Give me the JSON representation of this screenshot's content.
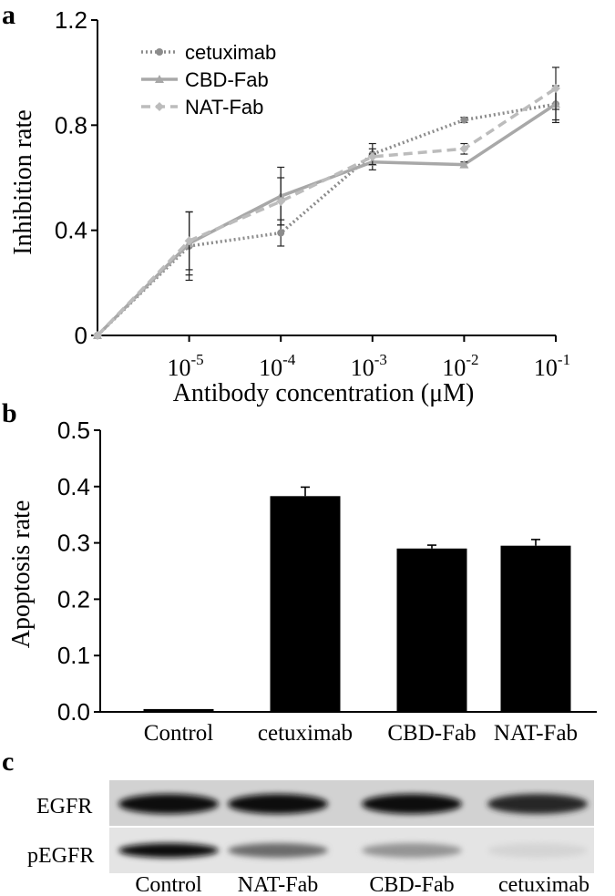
{
  "panel_labels": {
    "a": "a",
    "b": "b",
    "c": "c"
  },
  "colors": {
    "cetuximab": "#8c8c8c",
    "cbd": "#a8a8a8",
    "nat": "#bcbcbc",
    "bar": "#000000",
    "axis": "#000000"
  },
  "chart_data": [
    {
      "id": "a",
      "type": "line",
      "xlabel": "Antibody concentration (μM)",
      "ylabel": "Inhibition rate",
      "ylim": [
        0,
        1.2
      ],
      "yticks": [
        "0",
        "0.4",
        "0.8",
        "1.2"
      ],
      "ytick_values": [
        0,
        0.4,
        0.8,
        1.2
      ],
      "xtick_base": "10",
      "xticks": [
        {
          "exp": "-5",
          "v": 1
        },
        {
          "exp": "-4",
          "v": 2
        },
        {
          "exp": "-3",
          "v": 3
        },
        {
          "exp": "-2",
          "v": 4
        },
        {
          "exp": "-1",
          "v": 5
        }
      ],
      "xlim": [
        0,
        5
      ],
      "x": [
        0,
        1,
        2,
        3,
        4,
        5
      ],
      "series": [
        {
          "key": "cetuximab",
          "name": "cetuximab",
          "style": "dotted",
          "marker": "circle",
          "values": [
            0,
            0.34,
            0.39,
            0.69,
            0.82,
            0.88
          ],
          "errors": [
            0,
            0.13,
            0.05,
            0.04,
            0.01,
            0.06
          ]
        },
        {
          "key": "cbd",
          "name": "CBD-Fab",
          "style": "solid",
          "marker": "triangle",
          "values": [
            0,
            0.35,
            0.53,
            0.66,
            0.65,
            0.88
          ],
          "errors": [
            0,
            0.12,
            0.11,
            0.03,
            0.01,
            0.07
          ]
        },
        {
          "key": "nat",
          "name": "NAT-Fab",
          "style": "dashed",
          "marker": "diamond",
          "values": [
            0,
            0.36,
            0.51,
            0.68,
            0.71,
            0.94
          ],
          "errors": [
            0,
            0.11,
            0.09,
            0.03,
            0.02,
            0.08
          ]
        }
      ]
    },
    {
      "id": "b",
      "type": "bar",
      "ylabel": "Apoptosis rate",
      "ylim": [
        0,
        0.5
      ],
      "yticks": [
        "0.0",
        "0.1",
        "0.2",
        "0.3",
        "0.4",
        "0.5"
      ],
      "ytick_values": [
        0,
        0.1,
        0.2,
        0.3,
        0.4,
        0.5
      ],
      "categories": [
        "Control",
        "cetuximab",
        "CBD-Fab",
        "NAT-Fab"
      ],
      "values": [
        0.005,
        0.383,
        0.29,
        0.295
      ],
      "errors": [
        0.0,
        0.016,
        0.006,
        0.011
      ]
    }
  ],
  "blot": {
    "rows": [
      "EGFR",
      "pEGFR"
    ],
    "lanes": [
      "Control",
      "NAT-Fab",
      "CBD-Fab",
      "cetuximab"
    ],
    "intensity": {
      "EGFR": [
        0.95,
        0.95,
        0.97,
        0.85
      ],
      "pEGFR": [
        0.95,
        0.55,
        0.38,
        0.1
      ]
    }
  }
}
